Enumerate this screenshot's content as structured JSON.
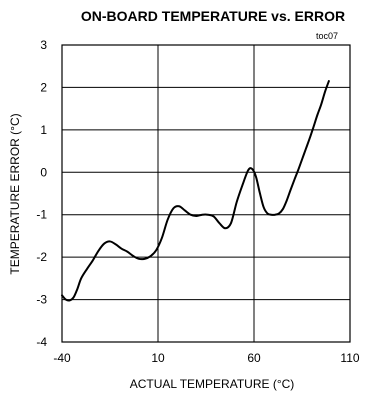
{
  "chart_data": {
    "type": "line",
    "title": "ON-BOARD TEMPERATURE vs. ERROR",
    "corner_label": "toc07",
    "xlabel": "ACTUAL TEMPERATURE (°C)",
    "ylabel": "TEMPERATURE ERROR (°C)",
    "xlim": [
      -40,
      110
    ],
    "ylim": [
      -4,
      3
    ],
    "x_ticks": [
      -40,
      10,
      60,
      110
    ],
    "x_tick_labels": [
      "-40",
      "10",
      "60",
      "110"
    ],
    "y_ticks": [
      3,
      2,
      1,
      0,
      -1,
      -2,
      -3,
      -4
    ],
    "y_tick_labels": [
      "3",
      "2",
      "1",
      "0",
      "-1",
      "-2",
      "-3",
      "-4"
    ],
    "grid": true,
    "line_color": "#000000",
    "series": [
      {
        "x": [
          -40,
          -38,
          -36,
          -34,
          -32,
          -30,
          -27,
          -24,
          -21,
          -18,
          -15,
          -12,
          -9,
          -6,
          -3,
          0,
          3,
          6,
          9,
          12,
          15,
          18,
          21,
          24,
          27,
          30,
          33,
          36,
          39,
          42,
          45,
          48,
          51,
          54,
          57,
          59,
          61,
          63,
          65,
          67,
          69,
          71,
          73,
          75,
          77,
          79,
          81,
          83,
          85,
          87,
          89,
          91,
          93,
          95,
          97,
          99
        ],
        "y": [
          -2.9,
          -3.0,
          -3.02,
          -2.95,
          -2.75,
          -2.5,
          -2.28,
          -2.08,
          -1.85,
          -1.68,
          -1.63,
          -1.7,
          -1.8,
          -1.87,
          -1.97,
          -2.04,
          -2.04,
          -1.98,
          -1.84,
          -1.55,
          -1.12,
          -0.85,
          -0.8,
          -0.9,
          -1.0,
          -1.03,
          -1.0,
          -1.0,
          -1.04,
          -1.2,
          -1.32,
          -1.2,
          -0.7,
          -0.3,
          0.05,
          0.08,
          -0.1,
          -0.48,
          -0.82,
          -0.97,
          -1.0,
          -1.0,
          -0.97,
          -0.87,
          -0.67,
          -0.42,
          -0.18,
          0.05,
          0.3,
          0.55,
          0.8,
          1.07,
          1.35,
          1.6,
          1.9,
          2.15
        ]
      }
    ]
  }
}
